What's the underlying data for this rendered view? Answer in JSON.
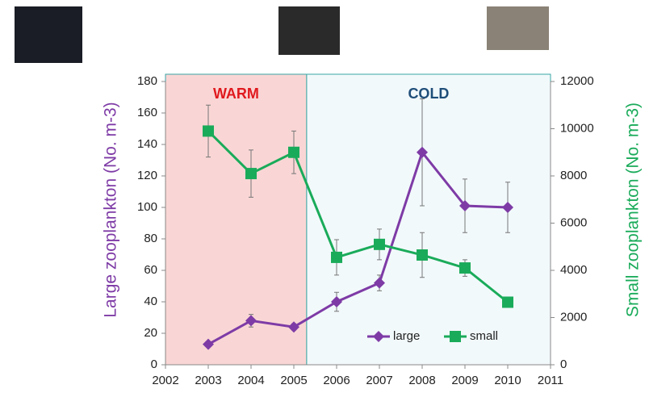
{
  "chart_data": {
    "type": "line",
    "ylabel": "Large zooplankton (No. m-3)",
    "y2label": "Small zooplankton (No. m-3)",
    "xlim": [
      2002,
      2011
    ],
    "xticks": [
      2002,
      2003,
      2004,
      2005,
      2006,
      2007,
      2008,
      2009,
      2010,
      2011
    ],
    "ylim": [
      0,
      180
    ],
    "yticks": [
      0,
      20,
      40,
      60,
      80,
      100,
      120,
      140,
      160,
      180
    ],
    "y2lim": [
      0,
      12000
    ],
    "y2ticks": [
      0,
      2000,
      4000,
      6000,
      8000,
      10000,
      12000
    ],
    "legend": "lower right",
    "regions": [
      {
        "label": "WARM",
        "from": 2002,
        "to": 2005.3,
        "color": "#f9d6d5",
        "label_color": "#e0191e"
      },
      {
        "label": "COLD",
        "from": 2005.3,
        "to": 2011,
        "color": "#f2f9fb",
        "label_color": "#1f4e79"
      }
    ],
    "x": [
      2003,
      2004,
      2005,
      2006,
      2007,
      2008,
      2009,
      2010
    ],
    "series": [
      {
        "name": "large",
        "color": "#7e3ba6",
        "marker": "diamond",
        "values": [
          13,
          28,
          24,
          40,
          52,
          135,
          101,
          100
        ],
        "errors": [
          1,
          4,
          2,
          6,
          5,
          34,
          17,
          16
        ]
      },
      {
        "name": "small",
        "color": "#1aab5a",
        "marker": "square",
        "axis": "y2",
        "values": [
          9900,
          8100,
          9000,
          4550,
          5100,
          4650,
          4100,
          2650
        ],
        "errors": [
          1100,
          1000,
          900,
          750,
          650,
          950,
          350,
          200
        ]
      }
    ]
  }
}
